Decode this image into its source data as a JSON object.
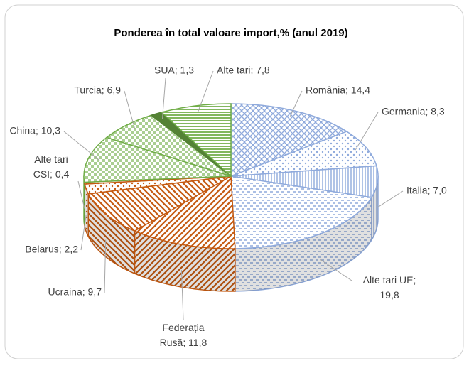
{
  "chart_data": {
    "type": "pie3d",
    "title": "Ponderea în total valoare import,% (anul 2019)",
    "values": [
      14.4,
      8.3,
      7.0,
      19.8,
      11.8,
      9.7,
      2.2,
      0.4,
      10.3,
      6.9,
      1.3,
      7.8
    ],
    "value_labels": [
      "România; 14,4",
      "Germania; 8,3",
      "Italia; 7,0",
      "Alte tari UE;\n19,8",
      "Federația\nRusă; 11,8",
      "Ucraina; 9,7",
      "Belarus; 2,2",
      "Alte tari\nCSI; 0,4",
      "China; 10,3",
      "Turcia; 6,9",
      "SUA; 1,3",
      "Alte tari; 7,8"
    ],
    "colors": [
      "#8faadc",
      "#8faadc",
      "#8faadc",
      "#8faadc",
      "#c55a11",
      "#c55a11",
      "#c55a11",
      "#c55a11",
      "#70ad47",
      "#70ad47",
      "#548235",
      "#70ad47"
    ]
  }
}
